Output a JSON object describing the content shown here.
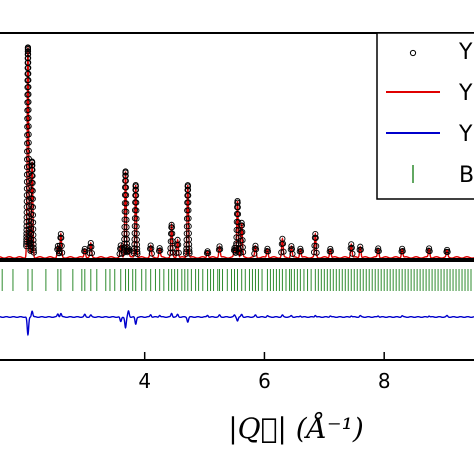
{
  "chart_data": {
    "type": "line",
    "xlabel": "|Q⃗| (Å⁻¹)",
    "xlim": [
      1.5,
      9.5
    ],
    "ylim": [
      0,
      1.0
    ],
    "grid": false,
    "legend_placement": "top-right",
    "x_ticks": [
      {
        "value": 4,
        "label": "4"
      },
      {
        "value": 6,
        "label": "6"
      },
      {
        "value": 8,
        "label": "8"
      }
    ],
    "colors": {
      "observed": "#000000",
      "calculated": "#e00000",
      "difference": "#0000cc",
      "bragg": "#2e8b2e"
    },
    "legend": [
      {
        "label": "Y",
        "kind": "marker",
        "color": "#000000"
      },
      {
        "label": "Y",
        "kind": "line",
        "color": "#e00000"
      },
      {
        "label": "Y",
        "kind": "line",
        "color": "#0000cc"
      },
      {
        "label": "B",
        "kind": "tick",
        "color": "#2e8b2e"
      }
    ],
    "peaks": [
      {
        "q": 2.05,
        "i": 0.92,
        "d": -0.3
      },
      {
        "q": 2.12,
        "i": 0.42,
        "d": 0.1
      },
      {
        "q": 2.55,
        "i": 0.05,
        "d": 0.05
      },
      {
        "q": 2.6,
        "i": 0.1,
        "d": 0.06
      },
      {
        "q": 3.0,
        "i": 0.04,
        "d": 0.04
      },
      {
        "q": 3.1,
        "i": 0.06,
        "d": 0.03
      },
      {
        "q": 3.6,
        "i": 0.05,
        "d": -0.08
      },
      {
        "q": 3.68,
        "i": 0.38,
        "d": -0.18
      },
      {
        "q": 3.73,
        "i": 0.04,
        "d": 0.1
      },
      {
        "q": 3.85,
        "i": 0.32,
        "d": -0.12
      },
      {
        "q": 4.1,
        "i": 0.05,
        "d": 0.04
      },
      {
        "q": 4.25,
        "i": 0.04,
        "d": 0.03
      },
      {
        "q": 4.45,
        "i": 0.14,
        "d": 0.06
      },
      {
        "q": 4.55,
        "i": 0.08,
        "d": 0.04
      },
      {
        "q": 4.72,
        "i": 0.32,
        "d": -0.08
      },
      {
        "q": 5.05,
        "i": 0.03,
        "d": 0.03
      },
      {
        "q": 5.25,
        "i": 0.05,
        "d": 0.03
      },
      {
        "q": 5.5,
        "i": 0.04,
        "d": 0.03
      },
      {
        "q": 5.55,
        "i": 0.25,
        "d": -0.06
      },
      {
        "q": 5.62,
        "i": 0.15,
        "d": 0.04
      },
      {
        "q": 5.85,
        "i": 0.05,
        "d": 0.03
      },
      {
        "q": 6.05,
        "i": 0.04,
        "d": 0.02
      },
      {
        "q": 6.3,
        "i": 0.08,
        "d": 0.03
      },
      {
        "q": 6.45,
        "i": 0.05,
        "d": 0.02
      },
      {
        "q": 6.6,
        "i": 0.04,
        "d": 0.02
      },
      {
        "q": 6.85,
        "i": 0.1,
        "d": 0.03
      },
      {
        "q": 7.1,
        "i": 0.04,
        "d": 0.02
      },
      {
        "q": 7.45,
        "i": 0.06,
        "d": 0.02
      },
      {
        "q": 7.6,
        "i": 0.05,
        "d": 0.02
      },
      {
        "q": 7.9,
        "i": 0.04,
        "d": 0.02
      },
      {
        "q": 8.3,
        "i": 0.04,
        "d": 0.02
      },
      {
        "q": 8.75,
        "i": 0.04,
        "d": 0.02
      },
      {
        "q": 9.05,
        "i": 0.03,
        "d": 0.02
      }
    ],
    "bragg_positions_q": [
      1.62,
      1.8,
      2.05,
      2.12,
      2.35,
      2.55,
      2.6,
      2.8,
      2.95,
      3.0,
      3.1,
      3.2,
      3.35,
      3.42,
      3.5,
      3.6,
      3.68,
      3.73,
      3.8,
      3.85,
      3.95,
      4.02,
      4.1,
      4.18,
      4.25,
      4.32,
      4.4,
      4.45,
      4.5,
      4.55,
      4.62,
      4.67,
      4.72,
      4.78,
      4.85,
      4.9,
      4.97,
      5.05,
      5.1,
      5.15,
      5.22,
      5.25,
      5.3,
      5.38,
      5.45,
      5.5,
      5.55,
      5.62,
      5.68,
      5.75,
      5.8,
      5.85,
      5.9,
      5.96,
      6.05,
      6.1,
      6.15,
      6.2,
      6.25,
      6.3,
      6.36,
      6.42,
      6.45,
      6.5,
      6.55,
      6.6,
      6.66,
      6.72,
      6.78,
      6.85,
      6.9,
      6.95,
      7.0,
      7.05,
      7.1,
      7.15,
      7.2,
      7.25,
      7.3,
      7.35,
      7.4,
      7.45,
      7.5,
      7.55,
      7.6,
      7.65,
      7.7,
      7.75,
      7.8,
      7.85,
      7.9,
      7.95,
      8.0,
      8.05,
      8.1,
      8.15,
      8.2,
      8.25,
      8.3,
      8.35,
      8.4,
      8.45,
      8.5,
      8.55,
      8.6,
      8.65,
      8.7,
      8.75,
      8.8,
      8.85,
      8.9,
      8.95,
      9.0,
      9.05,
      9.1,
      9.15,
      9.2,
      9.25,
      9.3,
      9.35,
      9.4,
      9.45
    ]
  }
}
